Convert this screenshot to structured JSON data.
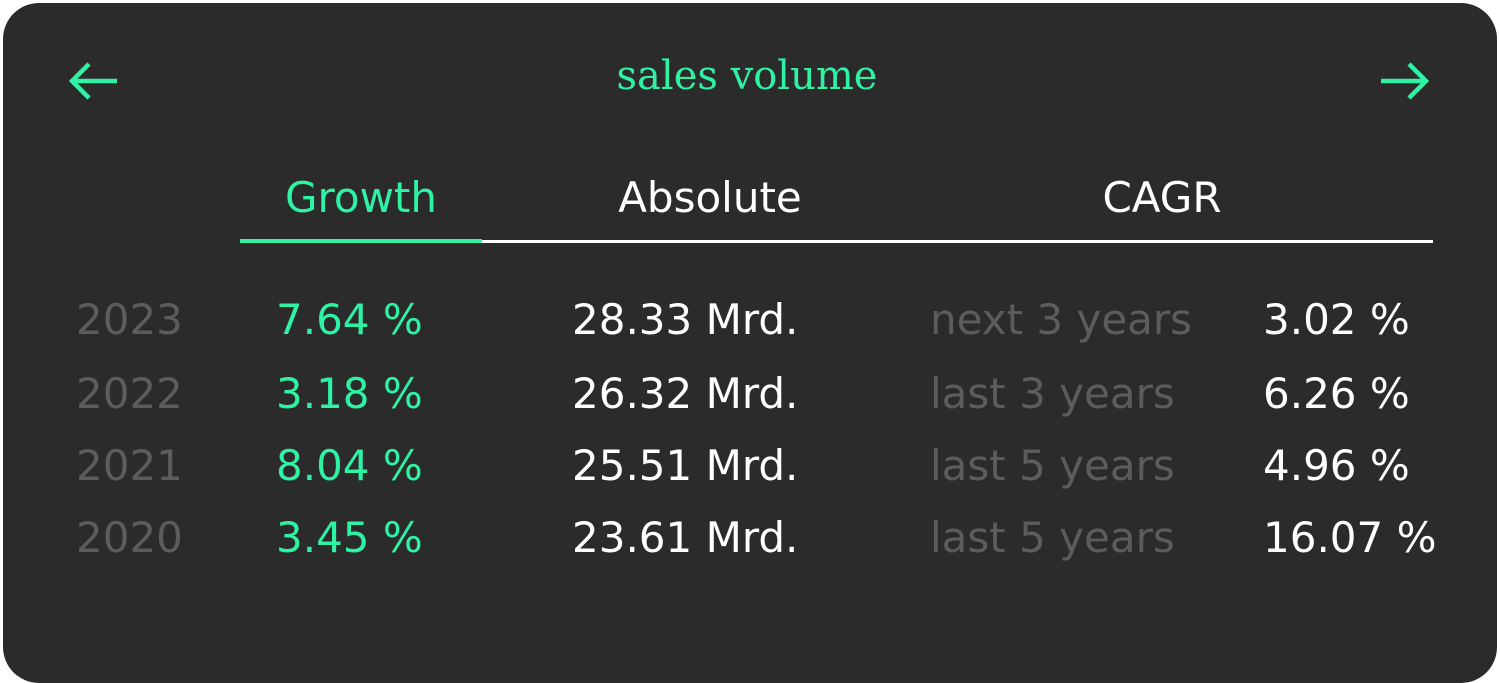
{
  "header": {
    "title": "sales volume",
    "prev_icon": "arrow-left-icon",
    "next_icon": "arrow-right-icon"
  },
  "tabs": [
    {
      "label": "Growth",
      "active": true
    },
    {
      "label": "Absolute",
      "active": false
    },
    {
      "label": "CAGR",
      "active": false
    }
  ],
  "colors": {
    "accent": "#2ef2a4",
    "background": "#2b2b2b",
    "muted": "#5c5c5c",
    "text": "#ffffff"
  },
  "rows": [
    {
      "year": "2023",
      "growth": "7.64 %",
      "absolute": "28.33 Mrd.",
      "cagr_label": "next 3 years",
      "cagr_value": "3.02 %"
    },
    {
      "year": "2022",
      "growth": "3.18 %",
      "absolute": "26.32 Mrd.",
      "cagr_label": "last 3 years",
      "cagr_value": "6.26 %"
    },
    {
      "year": "2021",
      "growth": "8.04 %",
      "absolute": "25.51 Mrd.",
      "cagr_label": "last 5 years",
      "cagr_value": "4.96 %"
    },
    {
      "year": "2020",
      "growth": "3.45 %",
      "absolute": "23.61 Mrd.",
      "cagr_label": "last 5 years",
      "cagr_value": "16.07 %"
    }
  ]
}
